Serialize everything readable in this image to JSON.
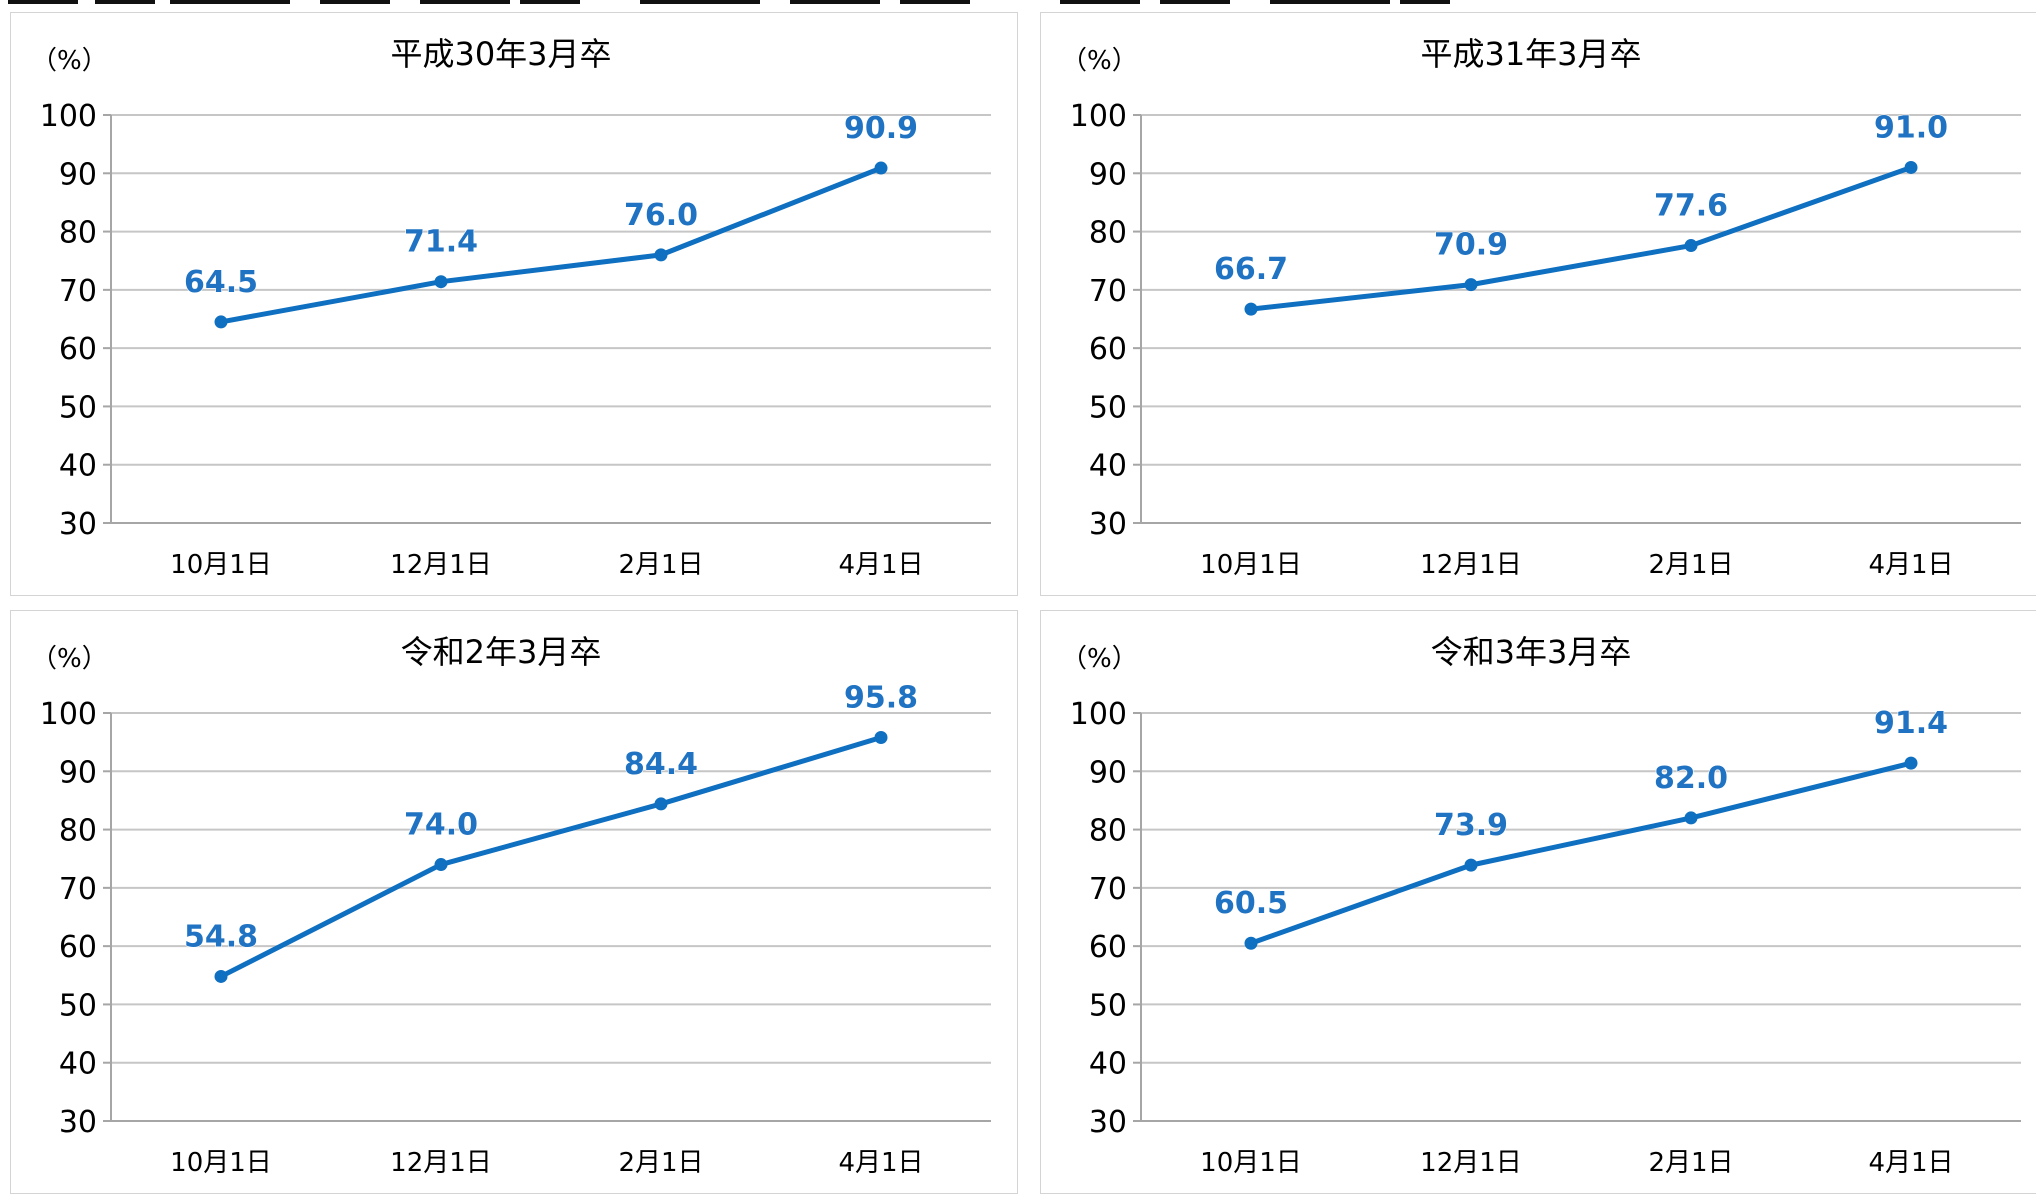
{
  "colors": {
    "line": "#0f6fc0",
    "label_fill": "#1f73c2",
    "label_halo": "#ffffff",
    "grid": "#c6c6c6",
    "axis": "#a6a6a6",
    "text": "#000000",
    "border": "#d4d4d4"
  },
  "chart_data": [
    {
      "type": "line",
      "title": "平成30年3月卒",
      "ylabel": "（%）",
      "categories": [
        "10月1日",
        "12月1日",
        "2月1日",
        "4月1日"
      ],
      "values": [
        64.5,
        71.4,
        76.0,
        90.9
      ],
      "value_labels": [
        "64.5",
        "71.4",
        "76.0",
        "90.9"
      ],
      "ylim": [
        30,
        100
      ],
      "yticks": [
        30,
        40,
        50,
        60,
        70,
        80,
        90,
        100
      ],
      "ytick_labels": [
        "30",
        "40",
        "50",
        "60",
        "70",
        "80",
        "90",
        "100"
      ],
      "grid": true,
      "legend": "none"
    },
    {
      "type": "line",
      "title": "平成31年3月卒",
      "ylabel": "（%）",
      "categories": [
        "10月1日",
        "12月1日",
        "2月1日",
        "4月1日"
      ],
      "values": [
        66.7,
        70.9,
        77.6,
        91.0
      ],
      "value_labels": [
        "66.7",
        "70.9",
        "77.6",
        "91.0"
      ],
      "ylim": [
        30,
        100
      ],
      "yticks": [
        30,
        40,
        50,
        60,
        70,
        80,
        90,
        100
      ],
      "ytick_labels": [
        "30",
        "40",
        "50",
        "60",
        "70",
        "80",
        "90",
        "100"
      ],
      "grid": true,
      "legend": "none"
    },
    {
      "type": "line",
      "title": "令和2年3月卒",
      "ylabel": "（%）",
      "categories": [
        "10月1日",
        "12月1日",
        "2月1日",
        "4月1日"
      ],
      "values": [
        54.8,
        74.0,
        84.4,
        95.8
      ],
      "value_labels": [
        "54.8",
        "74.0",
        "84.4",
        "95.8"
      ],
      "ylim": [
        30,
        100
      ],
      "yticks": [
        30,
        40,
        50,
        60,
        70,
        80,
        90,
        100
      ],
      "ytick_labels": [
        "30",
        "40",
        "50",
        "60",
        "70",
        "80",
        "90",
        "100"
      ],
      "grid": true,
      "legend": "none"
    },
    {
      "type": "line",
      "title": "令和3年3月卒",
      "ylabel": "（%）",
      "categories": [
        "10月1日",
        "12月1日",
        "2月1日",
        "4月1日"
      ],
      "values": [
        60.5,
        73.9,
        82.0,
        91.4
      ],
      "value_labels": [
        "60.5",
        "73.9",
        "82.0",
        "91.4"
      ],
      "ylim": [
        30,
        100
      ],
      "yticks": [
        30,
        40,
        50,
        60,
        70,
        80,
        90,
        100
      ],
      "ytick_labels": [
        "30",
        "40",
        "50",
        "60",
        "70",
        "80",
        "90",
        "100"
      ],
      "grid": true,
      "legend": "none"
    }
  ]
}
